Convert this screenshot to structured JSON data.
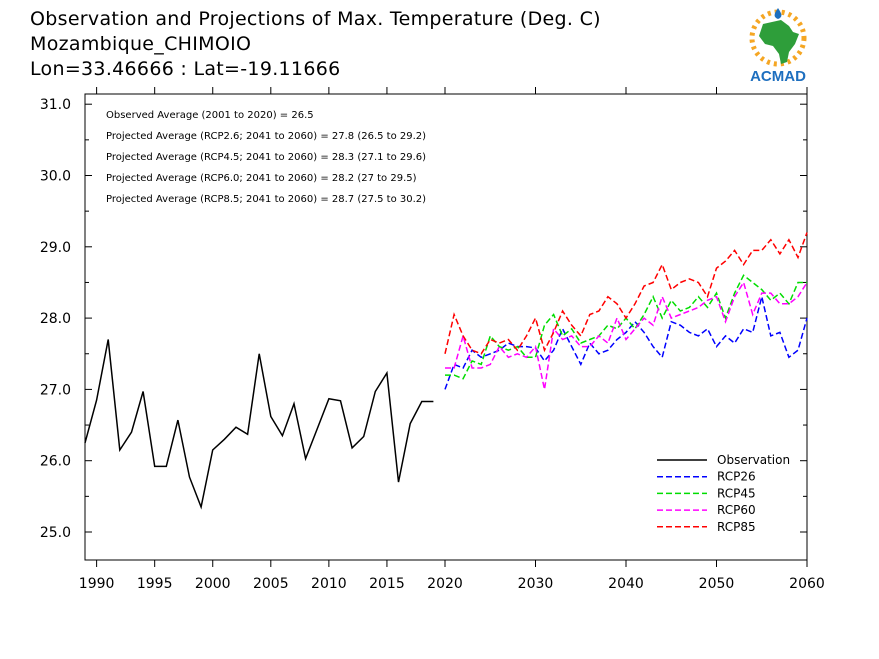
{
  "header": {
    "title_line1": "Observation and Projections of Max. Temperature (Deg. C)",
    "title_line2": "Mozambique_CHIMOIO",
    "title_line3": "Lon=33.46666 : Lat=-19.11666"
  },
  "logo": {
    "text": "ACMAD",
    "colors": {
      "africa": "#2e9e3a",
      "text": "#1e6fbf",
      "sun": "#f5a623",
      "drop": "#1e6fbf"
    }
  },
  "annotations": [
    "Observed Average (2001 to 2020) = 26.5",
    "Projected Average (RCP2.6; 2041 to 2060) = 27.8 (26.5 to 29.2)",
    "Projected Average (RCP4.5; 2041 to 2060) = 28.3 (27.1 to 29.6)",
    "Projected Average (RCP6.0; 2041 to 2060) = 28.2 (27 to 29.5)",
    "Projected Average (RCP8.5; 2041 to 2060) = 28.7 (27.5 to 30.2)"
  ],
  "chart_data": {
    "type": "line",
    "title": "Observation and Projections of Max. Temperature (Deg. C)",
    "xlim": [
      1989,
      2060
    ],
    "ylim": [
      24.6,
      31.1
    ],
    "grid": false,
    "legend_position": "bottom-right",
    "x_ticks": [
      1990,
      1995,
      2000,
      2005,
      2010,
      2015,
      2020,
      2030,
      2040,
      2050,
      2060
    ],
    "x_tick_labels": [
      "1990",
      "1995",
      "2000",
      "2005",
      "2010",
      "2015",
      "2020",
      "2030",
      "2040",
      "2050",
      "2060"
    ],
    "y_ticks": [
      25.0,
      26.0,
      27.0,
      28.0,
      29.0,
      30.0,
      31.0
    ],
    "y_tick_labels": [
      "25.0",
      "26.0",
      "27.0",
      "28.0",
      "29.0",
      "30.0",
      "31.0"
    ],
    "series": [
      {
        "name": "Observation",
        "color": "#000000",
        "dashed": false,
        "x": [
          1989,
          1990,
          1991,
          1992,
          1993,
          1994,
          1995,
          1996,
          1997,
          1998,
          1999,
          2000,
          2001,
          2002,
          2003,
          2004,
          2005,
          2006,
          2007,
          2008,
          2009,
          2010,
          2011,
          2012,
          2013,
          2014,
          2015,
          2016,
          2017,
          2018,
          2019
        ],
        "values": [
          26.25,
          26.85,
          27.7,
          26.15,
          26.4,
          26.97,
          25.92,
          25.92,
          26.57,
          25.77,
          25.35,
          26.15,
          26.3,
          26.47,
          26.37,
          27.5,
          26.62,
          26.35,
          26.8,
          26.03,
          26.45,
          26.87,
          26.84,
          26.18,
          26.34,
          26.97,
          27.23,
          25.7,
          26.52,
          26.83,
          26.83
        ]
      },
      {
        "name": "RCP26",
        "color": "#0000ff",
        "dashed": true,
        "x": [
          2020,
          2021,
          2022,
          2023,
          2024,
          2025,
          2026,
          2027,
          2028,
          2029,
          2030,
          2031,
          2032,
          2033,
          2034,
          2035,
          2036,
          2037,
          2038,
          2039,
          2040,
          2041,
          2042,
          2043,
          2044,
          2045,
          2046,
          2047,
          2048,
          2049,
          2050,
          2051,
          2052,
          2053,
          2054,
          2055,
          2056,
          2057,
          2058,
          2059,
          2060
        ],
        "values": [
          27.0,
          27.35,
          27.3,
          27.55,
          27.45,
          27.5,
          27.55,
          27.65,
          27.6,
          27.6,
          27.58,
          27.4,
          27.55,
          27.85,
          27.6,
          27.35,
          27.65,
          27.5,
          27.55,
          27.7,
          27.8,
          27.95,
          27.8,
          27.6,
          27.45,
          27.95,
          27.9,
          27.8,
          27.75,
          27.85,
          27.6,
          27.75,
          27.65,
          27.85,
          27.8,
          28.3,
          27.75,
          27.8,
          27.45,
          27.55,
          28.0
        ]
      },
      {
        "name": "RCP45",
        "color": "#00dd00",
        "dashed": true,
        "x": [
          2020,
          2021,
          2022,
          2023,
          2024,
          2025,
          2026,
          2027,
          2028,
          2029,
          2030,
          2031,
          2032,
          2033,
          2034,
          2035,
          2036,
          2037,
          2038,
          2039,
          2040,
          2041,
          2042,
          2043,
          2044,
          2045,
          2046,
          2047,
          2048,
          2049,
          2050,
          2051,
          2052,
          2053,
          2054,
          2055,
          2056,
          2057,
          2058,
          2059,
          2060
        ],
        "values": [
          27.2,
          27.2,
          27.15,
          27.4,
          27.35,
          27.75,
          27.6,
          27.55,
          27.6,
          27.45,
          27.45,
          27.9,
          28.05,
          27.75,
          27.85,
          27.65,
          27.7,
          27.75,
          27.9,
          27.85,
          28.0,
          27.85,
          28.05,
          28.3,
          28.0,
          28.25,
          28.1,
          28.15,
          28.3,
          28.15,
          28.35,
          28.0,
          28.35,
          28.6,
          28.5,
          28.4,
          28.25,
          28.35,
          28.2,
          28.5,
          28.5
        ]
      },
      {
        "name": "RCP60",
        "color": "#ff00ff",
        "dashed": true,
        "x": [
          2020,
          2021,
          2022,
          2023,
          2024,
          2025,
          2026,
          2027,
          2028,
          2029,
          2030,
          2031,
          2032,
          2033,
          2034,
          2035,
          2036,
          2037,
          2038,
          2039,
          2040,
          2041,
          2042,
          2043,
          2044,
          2045,
          2046,
          2047,
          2048,
          2049,
          2050,
          2051,
          2052,
          2053,
          2054,
          2055,
          2056,
          2057,
          2058,
          2059,
          2060
        ],
        "values": [
          27.3,
          27.3,
          27.75,
          27.3,
          27.3,
          27.35,
          27.6,
          27.45,
          27.5,
          27.45,
          27.6,
          27.0,
          27.85,
          27.7,
          27.75,
          27.6,
          27.6,
          27.75,
          27.65,
          28.0,
          27.7,
          27.85,
          28.0,
          27.9,
          28.3,
          28.0,
          28.05,
          28.1,
          28.15,
          28.25,
          28.3,
          27.95,
          28.3,
          28.5,
          28.05,
          28.35,
          28.35,
          28.2,
          28.2,
          28.3,
          28.5
        ]
      },
      {
        "name": "RCP85",
        "color": "#ff0000",
        "dashed": true,
        "x": [
          2020,
          2021,
          2022,
          2023,
          2024,
          2025,
          2026,
          2027,
          2028,
          2029,
          2030,
          2031,
          2032,
          2033,
          2034,
          2035,
          2036,
          2037,
          2038,
          2039,
          2040,
          2041,
          2042,
          2043,
          2044,
          2045,
          2046,
          2047,
          2048,
          2049,
          2050,
          2051,
          2052,
          2053,
          2054,
          2055,
          2056,
          2057,
          2058,
          2059,
          2060
        ],
        "values": [
          27.5,
          28.05,
          27.75,
          27.55,
          27.5,
          27.7,
          27.65,
          27.7,
          27.55,
          27.75,
          28.0,
          27.55,
          27.8,
          28.1,
          27.9,
          27.75,
          28.05,
          28.1,
          28.3,
          28.2,
          28.0,
          28.2,
          28.45,
          28.5,
          28.75,
          28.4,
          28.5,
          28.55,
          28.5,
          28.3,
          28.7,
          28.8,
          28.95,
          28.75,
          28.95,
          28.95,
          29.1,
          28.9,
          29.1,
          28.85,
          29.2
        ]
      }
    ]
  }
}
